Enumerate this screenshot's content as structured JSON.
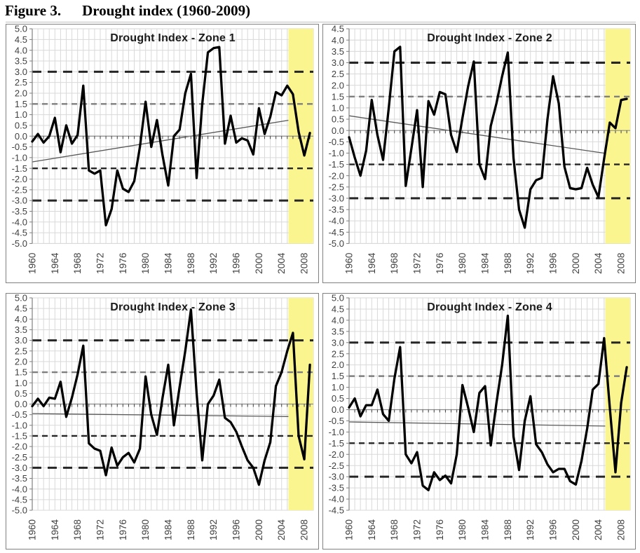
{
  "figure": {
    "label": "Figure 3.",
    "title": "Drought index (1960-2009)"
  },
  "colors": {
    "series_line": "#000000",
    "trend_line": "#595959",
    "threshold_major": "#262626",
    "threshold_minor_upper": "#7f7f7f",
    "threshold_minor_lower": "#262626",
    "gridline": "#d9d9d9",
    "zero_axis": "#8c8c8c",
    "tick": "#404040",
    "axis_label": "#404040",
    "highlight_band": "#faf58f",
    "panel_border": "#808080"
  },
  "chart_config": {
    "x_start": 1960,
    "x_end": 2009,
    "x_tick_interval": 4,
    "x_tick_labels": [
      "1960",
      "1964",
      "1968",
      "1972",
      "1976",
      "1980",
      "1984",
      "1988",
      "1992",
      "1996",
      "2000",
      "2004",
      "2008"
    ],
    "y_tick_step": 0.5,
    "thresholds": {
      "major_upper": 3.0,
      "minor_upper": 1.5,
      "minor_lower": -1.5,
      "major_lower": -3.0
    },
    "highlight_from_year": 2005.2,
    "grid": "on",
    "legend": "none"
  },
  "chart_data": [
    {
      "type": "line",
      "title": "Drought Index - Zone 1",
      "ylim": [
        -5.0,
        5.0
      ],
      "trend": {
        "y_start": -1.2,
        "y_end": 0.9
      },
      "values": [
        -0.25,
        0.1,
        -0.3,
        0.0,
        0.85,
        -0.75,
        0.5,
        -0.35,
        0.05,
        2.35,
        -1.6,
        -1.75,
        -1.6,
        -4.15,
        -3.4,
        -1.6,
        -2.45,
        -2.6,
        -2.1,
        -0.5,
        1.6,
        -0.5,
        0.75,
        -0.9,
        -2.3,
        0.0,
        0.3,
        2.0,
        2.9,
        -1.95,
        1.5,
        3.9,
        4.1,
        4.15,
        -0.35,
        0.95,
        -0.3,
        -0.1,
        -0.2,
        -0.85,
        1.3,
        0.1,
        0.9,
        2.05,
        1.9,
        2.35,
        1.95,
        0.2,
        -0.9,
        0.15
      ]
    },
    {
      "type": "line",
      "title": "Drought Index - Zone 2",
      "ylim": [
        -5.0,
        4.5
      ],
      "trend": {
        "y_start": 0.65,
        "y_end": -1.15
      },
      "values": [
        -0.3,
        -1.2,
        -2.0,
        -0.9,
        1.35,
        -0.2,
        -1.3,
        1.0,
        3.5,
        3.7,
        -2.45,
        -0.8,
        0.9,
        -2.5,
        1.3,
        0.7,
        1.7,
        1.6,
        -0.2,
        -0.95,
        0.55,
        1.95,
        3.05,
        -1.5,
        -2.15,
        0.2,
        1.2,
        2.4,
        3.45,
        -1.2,
        -3.5,
        -4.3,
        -2.6,
        -2.2,
        -2.1,
        0.5,
        2.4,
        1.2,
        -1.6,
        -2.55,
        -2.6,
        -2.55,
        -1.65,
        -2.4,
        -2.95,
        -1.25,
        0.35,
        0.1,
        1.35,
        1.4
      ]
    },
    {
      "type": "line",
      "title": "Drought Index - Zone 3",
      "ylim": [
        -5.0,
        5.0
      ],
      "trend": {
        "y_start": -0.45,
        "y_end": -0.6
      },
      "values": [
        -0.1,
        0.25,
        -0.1,
        0.3,
        0.25,
        1.05,
        -0.6,
        0.3,
        1.4,
        2.75,
        -1.85,
        -2.1,
        -2.2,
        -3.35,
        -2.05,
        -2.9,
        -2.5,
        -2.3,
        -2.75,
        -2.1,
        1.3,
        -0.5,
        -1.45,
        0.3,
        1.85,
        -1.0,
        0.8,
        2.5,
        4.45,
        0.5,
        -2.65,
        0.0,
        0.4,
        1.15,
        -0.65,
        -0.85,
        -1.3,
        -2.0,
        -2.65,
        -3.0,
        -3.8,
        -2.65,
        -1.8,
        0.85,
        1.5,
        2.5,
        3.35,
        -1.5,
        -2.6,
        1.85
      ]
    },
    {
      "type": "line",
      "title": "Drought Index - Zone 4",
      "ylim": [
        -4.5,
        5.0
      ],
      "trend": {
        "y_start": -0.55,
        "y_end": -0.75
      },
      "values": [
        0.1,
        0.5,
        -0.3,
        0.2,
        0.2,
        0.9,
        -0.2,
        -0.5,
        1.4,
        2.8,
        -2.0,
        -2.4,
        -1.9,
        -3.4,
        -3.6,
        -2.8,
        -3.15,
        -2.95,
        -3.3,
        -2.0,
        1.1,
        0.1,
        -1.0,
        0.75,
        1.05,
        -1.6,
        0.3,
        2.0,
        4.2,
        -1.2,
        -2.7,
        -0.5,
        0.6,
        -1.55,
        -1.9,
        -2.45,
        -2.8,
        -2.65,
        -2.65,
        -3.2,
        -3.35,
        -2.3,
        -0.85,
        0.9,
        1.15,
        3.2,
        0.1,
        -2.8,
        0.3,
        1.9
      ]
    }
  ]
}
